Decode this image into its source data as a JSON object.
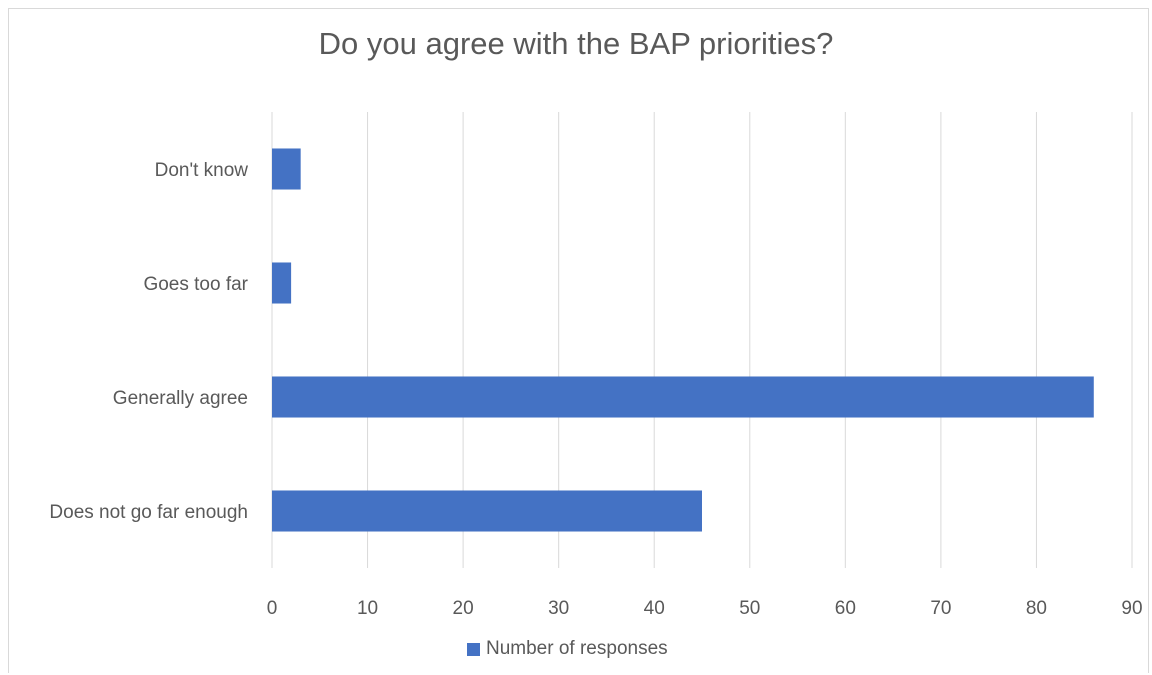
{
  "chart_data": {
    "type": "bar",
    "orientation": "horizontal",
    "title": "Do you agree with the BAP priorities?",
    "categories": [
      "Don't know",
      "Goes too far",
      "Generally agree",
      "Does not go far enough"
    ],
    "series": [
      {
        "name": "Number of responses",
        "values": [
          3,
          2,
          86,
          45
        ],
        "color": "#4472c4"
      }
    ],
    "xlim": [
      0,
      90
    ],
    "xticks": [
      0,
      10,
      20,
      30,
      40,
      50,
      60,
      70,
      80,
      90
    ],
    "xticks_labels": [
      "0",
      "10",
      "20",
      "30",
      "40",
      "50",
      "60",
      "70",
      "80",
      "90"
    ],
    "grid": true,
    "legend_position": "bottom"
  }
}
